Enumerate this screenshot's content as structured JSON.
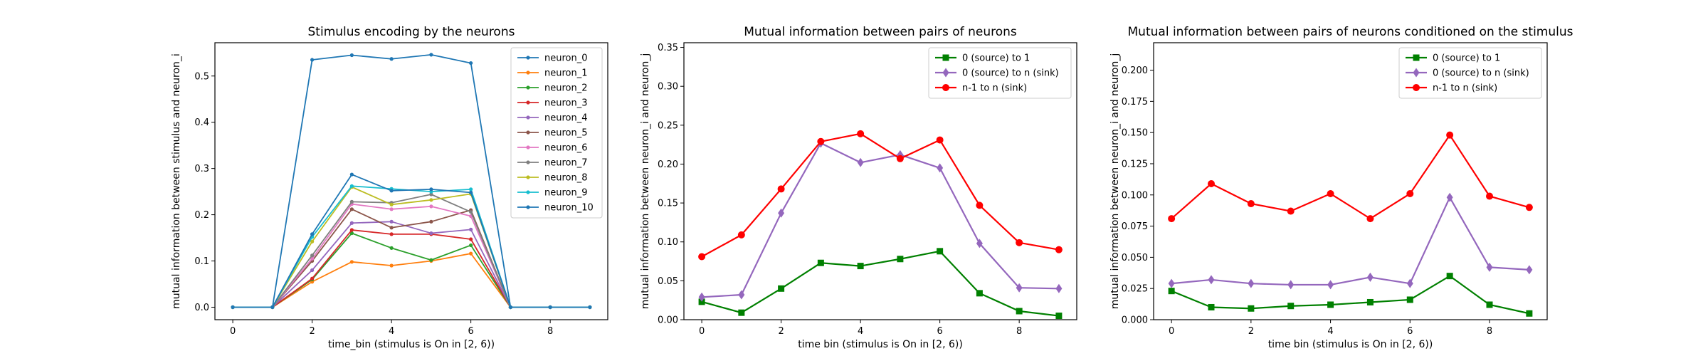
{
  "chart_data": [
    {
      "type": "line",
      "title": "Stimulus encoding by the neurons",
      "xlabel": "time_bin (stimulus is On in [2, 6))",
      "ylabel": "mutual information between stimulus and neuron_i",
      "x": [
        0,
        1,
        2,
        3,
        4,
        5,
        6,
        7,
        8,
        9
      ],
      "xlim": [
        -0.45,
        9.45
      ],
      "ylim": [
        -0.027,
        0.572
      ],
      "xticks": [
        0,
        2,
        4,
        6,
        8
      ],
      "yticks": [
        0.0,
        0.1,
        0.2,
        0.3,
        0.4,
        0.5
      ],
      "ytick_decimals": 1,
      "legend_position": "upper right",
      "grid": false,
      "series": [
        {
          "name": "neuron_0",
          "color": "#1f77b4",
          "marker": "dot",
          "values": [
            0,
            0,
            0.535,
            0.545,
            0.537,
            0.546,
            0.528,
            0,
            0,
            0
          ]
        },
        {
          "name": "neuron_1",
          "color": "#ff7f0e",
          "marker": "dot",
          "values": [
            0,
            0,
            0.055,
            0.098,
            0.09,
            0.1,
            0.116,
            0,
            0,
            0
          ]
        },
        {
          "name": "neuron_2",
          "color": "#2ca02c",
          "marker": "dot",
          "values": [
            0,
            0,
            0.06,
            0.16,
            0.128,
            0.102,
            0.134,
            0,
            0,
            0
          ]
        },
        {
          "name": "neuron_3",
          "color": "#d62728",
          "marker": "dot",
          "values": [
            0,
            0,
            0.062,
            0.167,
            0.158,
            0.158,
            0.147,
            0,
            0,
            0
          ]
        },
        {
          "name": "neuron_4",
          "color": "#9467bd",
          "marker": "dot",
          "values": [
            0,
            0,
            0.08,
            0.182,
            0.185,
            0.16,
            0.168,
            0,
            0,
            0
          ]
        },
        {
          "name": "neuron_5",
          "color": "#8c564b",
          "marker": "dot",
          "values": [
            0,
            0,
            0.1,
            0.212,
            0.172,
            0.185,
            0.21,
            0,
            0,
            0
          ]
        },
        {
          "name": "neuron_6",
          "color": "#e377c2",
          "marker": "dot",
          "values": [
            0,
            0,
            0.105,
            0.223,
            0.212,
            0.218,
            0.197,
            0,
            0,
            0
          ]
        },
        {
          "name": "neuron_7",
          "color": "#7f7f7f",
          "marker": "dot",
          "values": [
            0,
            0,
            0.112,
            0.228,
            0.226,
            0.244,
            0.206,
            0,
            0,
            0
          ]
        },
        {
          "name": "neuron_8",
          "color": "#bcbd22",
          "marker": "dot",
          "values": [
            0,
            0,
            0.142,
            0.26,
            0.222,
            0.232,
            0.245,
            0,
            0,
            0
          ]
        },
        {
          "name": "neuron_9",
          "color": "#17becf",
          "marker": "dot",
          "values": [
            0,
            0,
            0.152,
            0.262,
            0.256,
            0.25,
            0.255,
            0,
            0,
            0
          ]
        },
        {
          "name": "neuron_10",
          "color": "#1f77b4",
          "marker": "dot",
          "values": [
            0,
            0,
            0.158,
            0.287,
            0.252,
            0.255,
            0.248,
            0,
            0,
            0
          ]
        }
      ]
    },
    {
      "type": "line",
      "title": "Mutual information between pairs of neurons",
      "xlabel": "time bin (stimulus is On in [2, 6))",
      "ylabel": "mutual information between neuron_i and neuron_j",
      "x": [
        0,
        1,
        2,
        3,
        4,
        5,
        6,
        7,
        8,
        9
      ],
      "xlim": [
        -0.45,
        9.45
      ],
      "ylim": [
        0.0,
        0.356
      ],
      "xticks": [
        0,
        2,
        4,
        6,
        8
      ],
      "yticks": [
        0.0,
        0.05,
        0.1,
        0.15,
        0.2,
        0.25,
        0.3,
        0.35
      ],
      "ytick_decimals": 2,
      "legend_position": "upper right",
      "grid": false,
      "series": [
        {
          "name": "0 (source) to 1",
          "color": "#008000",
          "marker": "square",
          "values": [
            0.023,
            0.009,
            0.04,
            0.073,
            0.069,
            0.078,
            0.088,
            0.034,
            0.011,
            0.005
          ]
        },
        {
          "name": "0 (source) to n (sink)",
          "color": "#9467bd",
          "marker": "diamond",
          "values": [
            0.029,
            0.032,
            0.137,
            0.227,
            0.202,
            0.212,
            0.195,
            0.098,
            0.041,
            0.04
          ]
        },
        {
          "name": "n-1 to n (sink)",
          "color": "#ff0000",
          "marker": "circle",
          "values": [
            0.081,
            0.109,
            0.168,
            0.229,
            0.239,
            0.207,
            0.231,
            0.147,
            0.099,
            0.09
          ]
        }
      ]
    },
    {
      "type": "line",
      "title": "Mutual information between pairs of neurons conditioned on the stimulus",
      "xlabel": "time bin (stimulus is On in [2, 6))",
      "ylabel": "mutual information between neuron_i and neuron_j",
      "x": [
        0,
        1,
        2,
        3,
        4,
        5,
        6,
        7,
        8,
        9
      ],
      "xlim": [
        -0.45,
        9.45
      ],
      "ylim": [
        0.0,
        0.222
      ],
      "xticks": [
        0,
        2,
        4,
        6,
        8
      ],
      "yticks": [
        0.0,
        0.025,
        0.05,
        0.075,
        0.1,
        0.125,
        0.15,
        0.175,
        0.2
      ],
      "ytick_decimals": 3,
      "legend_position": "upper right",
      "grid": false,
      "series": [
        {
          "name": "0 (source) to 1",
          "color": "#008000",
          "marker": "square",
          "values": [
            0.023,
            0.01,
            0.009,
            0.011,
            0.012,
            0.014,
            0.016,
            0.035,
            0.012,
            0.005
          ]
        },
        {
          "name": "0 (source) to n (sink)",
          "color": "#9467bd",
          "marker": "diamond",
          "values": [
            0.029,
            0.032,
            0.029,
            0.028,
            0.028,
            0.034,
            0.029,
            0.098,
            0.042,
            0.04
          ]
        },
        {
          "name": "n-1 to n (sink)",
          "color": "#ff0000",
          "marker": "circle",
          "values": [
            0.081,
            0.109,
            0.093,
            0.087,
            0.101,
            0.081,
            0.101,
            0.148,
            0.099,
            0.09
          ]
        }
      ]
    }
  ]
}
